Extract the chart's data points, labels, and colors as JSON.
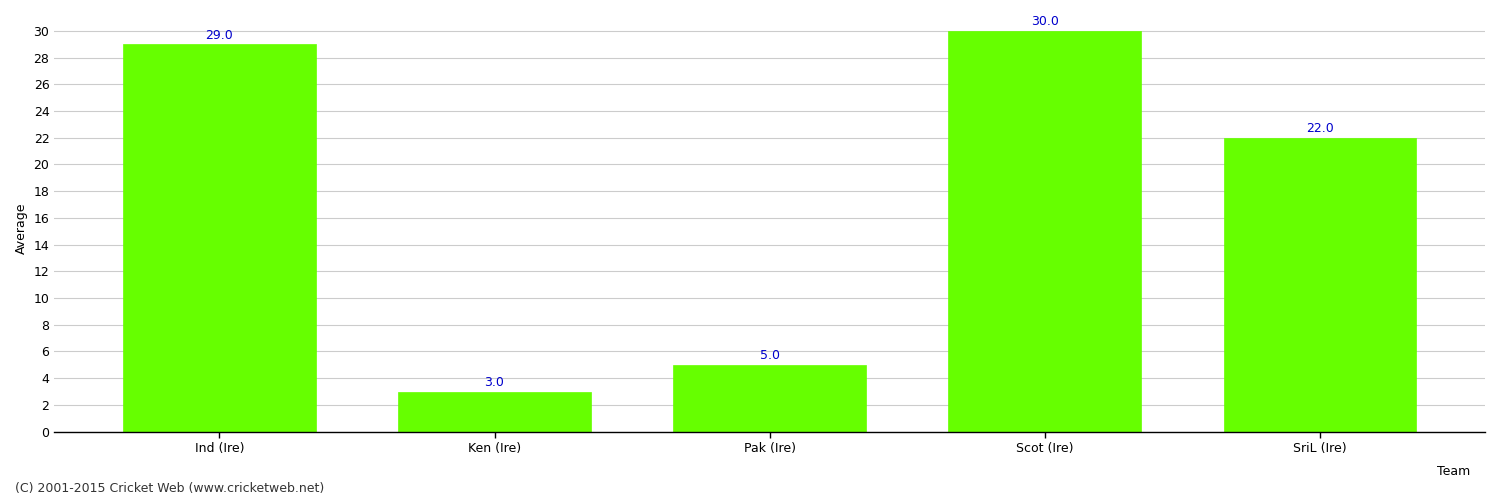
{
  "categories": [
    "Ind (Ire)",
    "Ken (Ire)",
    "Pak (Ire)",
    "Scot (Ire)",
    "SriL (Ire)"
  ],
  "values": [
    29.0,
    3.0,
    5.0,
    30.0,
    22.0
  ],
  "bar_color": "#66FF00",
  "bar_edge_color": "#66FF00",
  "label_color": "#0000CC",
  "ylabel": "Average",
  "xlabel": "Team",
  "ylim": [
    0,
    30
  ],
  "yticks": [
    0,
    2,
    4,
    6,
    8,
    10,
    12,
    14,
    16,
    18,
    20,
    22,
    24,
    26,
    28,
    30
  ],
  "grid_color": "#CCCCCC",
  "background_color": "#FFFFFF",
  "footer_text": "(C) 2001-2015 Cricket Web (www.cricketweb.net)",
  "label_fontsize": 9,
  "axis_fontsize": 9,
  "footer_fontsize": 9,
  "bar_width": 0.7
}
